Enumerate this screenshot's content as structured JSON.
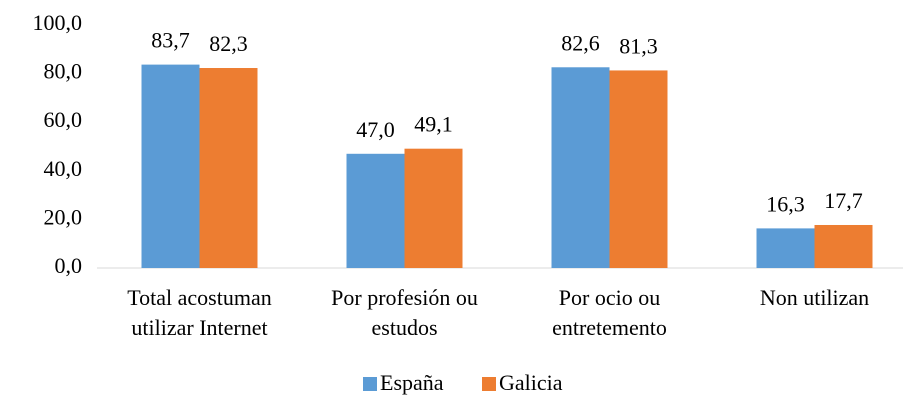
{
  "chart_data": {
    "type": "bar",
    "categories": [
      "Total acostuman\nutilizar Internet",
      "Por profesión ou\nestudos",
      "Por ocio ou\nentretemento",
      "Non utilizan"
    ],
    "series": [
      {
        "name": "España",
        "color": "#5b9bd5",
        "values": [
          83.7,
          47.0,
          82.6,
          16.3
        ],
        "value_labels": [
          "83,7",
          "47,0",
          "82,6",
          "16,3"
        ]
      },
      {
        "name": "Galicia",
        "color": "#ed7d31",
        "values": [
          82.3,
          49.1,
          81.3,
          17.7
        ],
        "value_labels": [
          "82,3",
          "49,1",
          "81,3",
          "17,7"
        ]
      }
    ],
    "ylim": [
      0,
      100
    ],
    "yticks": [
      {
        "value": 0,
        "label": "0,0"
      },
      {
        "value": 20,
        "label": "20,0"
      },
      {
        "value": 40,
        "label": "40,0"
      },
      {
        "value": 60,
        "label": "60,0"
      },
      {
        "value": 80,
        "label": "80,0"
      },
      {
        "value": 100,
        "label": "100,0"
      }
    ],
    "grid": false,
    "legend": "bottom"
  }
}
